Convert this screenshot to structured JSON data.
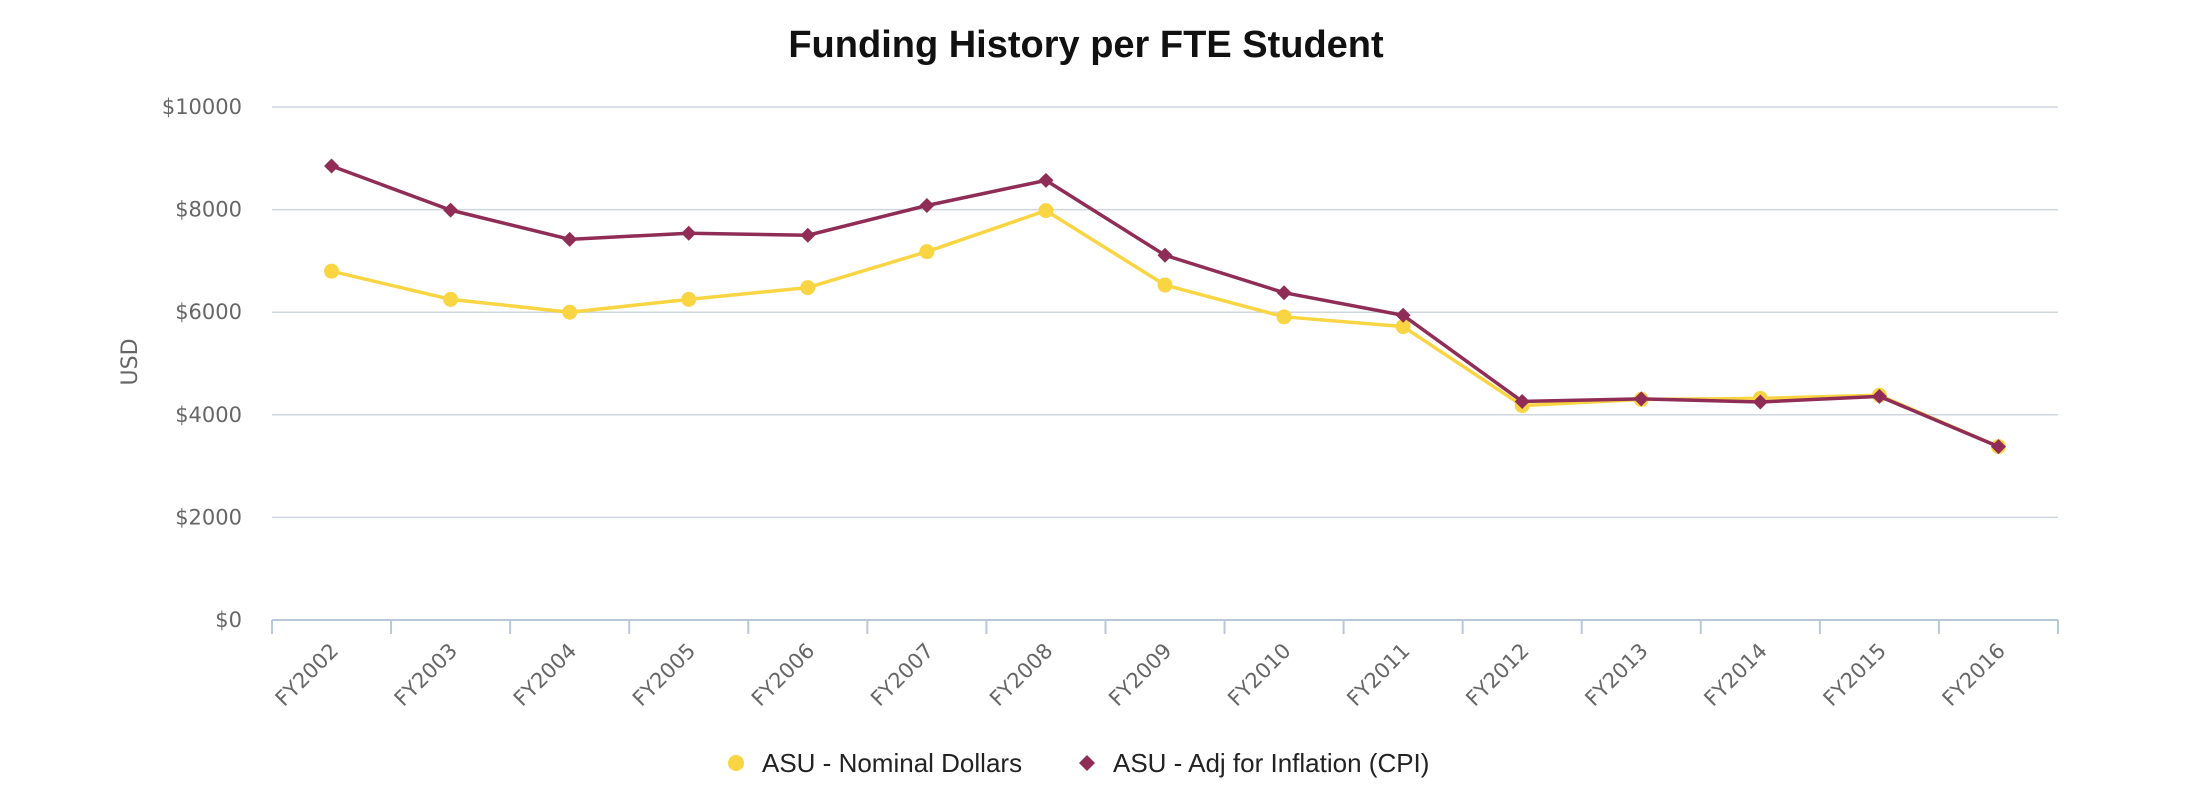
{
  "chart_data": {
    "type": "line",
    "title": "Funding History per FTE Student",
    "xlabel": "",
    "ylabel": "USD",
    "ylim": [
      0,
      10000
    ],
    "yticks": [
      0,
      2000,
      4000,
      6000,
      8000,
      10000
    ],
    "ytick_labels": [
      "$0",
      "$2000",
      "$4000",
      "$6000",
      "$8000",
      "$10000"
    ],
    "grid": true,
    "legend_position": "bottom",
    "categories": [
      "FY2002",
      "FY2003",
      "FY2004",
      "FY2005",
      "FY2006",
      "FY2007",
      "FY2008",
      "FY2009",
      "FY2010",
      "FY2011",
      "FY2012",
      "FY2013",
      "FY2014",
      "FY2015",
      "FY2016"
    ],
    "series": [
      {
        "name": "ASU - Nominal Dollars",
        "marker": "circle",
        "color": "#f9d544",
        "values": [
          6800,
          6250,
          6000,
          6250,
          6480,
          7180,
          7980,
          6530,
          5910,
          5720,
          4180,
          4300,
          4320,
          4380,
          3380
        ]
      },
      {
        "name": "ASU - Adj for Inflation (CPI)",
        "marker": "diamond",
        "color": "#8f2d56",
        "values": [
          8850,
          7990,
          7420,
          7540,
          7500,
          8080,
          8570,
          7110,
          6380,
          5940,
          4260,
          4310,
          4250,
          4360,
          3380
        ]
      }
    ]
  }
}
